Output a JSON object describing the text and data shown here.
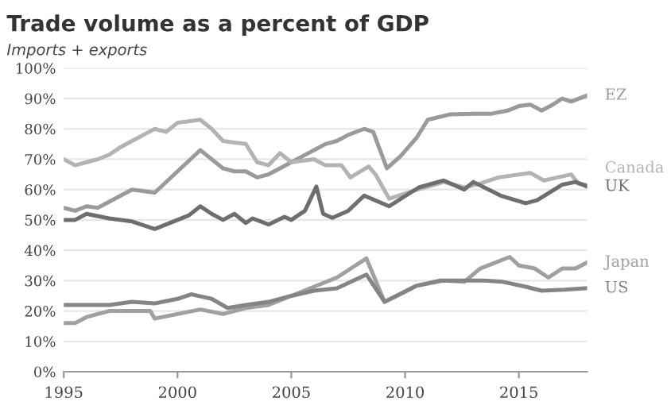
{
  "chart_data": {
    "type": "line",
    "title": "Trade volume as a percent of GDP",
    "subtitle": "Imports + exports",
    "xlim": [
      1995,
      2018
    ],
    "xticks": [
      1995,
      2000,
      2005,
      2010,
      2015
    ],
    "ylim": [
      0,
      100
    ],
    "yticks": [
      {
        "value": 0,
        "label": "0%"
      },
      {
        "value": 10,
        "label": "10%"
      },
      {
        "value": 20,
        "label": "20%"
      },
      {
        "value": 30,
        "label": "30%"
      },
      {
        "value": 40,
        "label": "40%"
      },
      {
        "value": 50,
        "label": "50%"
      },
      {
        "value": 60,
        "label": "60%"
      },
      {
        "value": 70,
        "label": "70%"
      },
      {
        "value": 80,
        "label": "80%"
      },
      {
        "value": 90,
        "label": "90%"
      },
      {
        "value": 100,
        "label": "100%"
      }
    ],
    "grid": "y",
    "legend": false,
    "marker": "none",
    "line_style": "solid",
    "series": [
      {
        "name": "EZ",
        "color": "#9a9a9a",
        "x": [
          1995,
          1995.5,
          1996,
          1996.5,
          1997,
          1998,
          1999,
          2000,
          2001,
          2002,
          2002.5,
          2003,
          2003.5,
          2004,
          2004.5,
          2005,
          2005.5,
          2006,
          2006.5,
          2007,
          2007.5,
          2008.2,
          2008.6,
          2009.2,
          2009.8,
          2010.5,
          2011,
          2012,
          2013,
          2013.8,
          2014.5,
          2015,
          2015.5,
          2016,
          2016.5,
          2016.9,
          2017.3,
          2018
        ],
        "values": [
          54,
          53,
          54.5,
          54,
          56,
          60,
          59,
          66,
          73,
          67,
          66,
          66,
          64,
          65,
          67,
          69,
          71,
          73,
          75,
          76,
          78,
          80,
          79,
          67,
          71,
          77,
          83,
          84.8,
          85,
          85,
          86,
          87.5,
          88,
          86,
          88,
          90,
          89,
          91
        ]
      },
      {
        "name": "Canada",
        "color": "#b3b3b3",
        "x": [
          1995,
          1995.5,
          1996,
          1996.5,
          1997,
          1997.5,
          1998,
          1998.5,
          1999,
          1999.5,
          2000,
          2000.5,
          2001,
          2001.5,
          2002,
          2002.5,
          2003,
          2003.5,
          2004,
          2004.5,
          2005,
          2006,
          2006.5,
          2007.2,
          2007.6,
          2008.4,
          2008.7,
          2009.3,
          2010.5,
          2011.7,
          2012.6,
          2013.3,
          2014.1,
          2015.5,
          2016.1,
          2016.7,
          2017.3,
          2017.6,
          2018
        ],
        "values": [
          70,
          68,
          69,
          70,
          71.5,
          74,
          76,
          78,
          80,
          79,
          82,
          82.5,
          83,
          80,
          76,
          75.5,
          75,
          69,
          68,
          72,
          69,
          70,
          68,
          68,
          64,
          67.6,
          65,
          57,
          59.9,
          62.5,
          60.7,
          62,
          64,
          65.5,
          63,
          64,
          65,
          62,
          61.5
        ]
      },
      {
        "name": "UK",
        "color": "#6e6e6e",
        "x": [
          1995,
          1995.5,
          1996,
          1997,
          1998,
          1999,
          2000,
          2000.5,
          2001,
          2001.5,
          2002,
          2002.5,
          2003,
          2003.3,
          2004,
          2004.7,
          2005,
          2005.6,
          2006.1,
          2006.4,
          2006.8,
          2007.5,
          2008.2,
          2009.3,
          2010.6,
          2011.7,
          2012.6,
          2013,
          2014.2,
          2015.3,
          2015.8,
          2016.9,
          2017.5,
          2018
        ],
        "values": [
          50,
          50,
          52,
          50.5,
          49.5,
          47,
          50,
          51.5,
          54.5,
          52,
          50,
          52,
          49,
          50.5,
          48.5,
          51,
          50,
          53,
          61,
          52,
          50.7,
          53,
          58,
          54.5,
          60.7,
          63,
          60,
          62.5,
          58,
          55.5,
          56.5,
          61.6,
          62.5,
          61
        ]
      },
      {
        "name": "Japan",
        "color": "#a0a0a0",
        "x": [
          1995,
          1995.5,
          1996,
          1997,
          1998,
          1998.8,
          1999,
          2000,
          2001,
          2002,
          2003,
          2004,
          2005,
          2006,
          2007,
          2008.3,
          2009.1,
          2010.5,
          2011.7,
          2012.6,
          2013.3,
          2014.6,
          2015,
          2015.7,
          2016.3,
          2016.9,
          2017.5,
          2018
        ],
        "values": [
          16,
          16,
          18,
          20,
          20,
          20,
          17.5,
          19,
          20.5,
          19,
          21,
          22,
          25,
          28,
          31,
          37.3,
          23,
          28.3,
          30,
          29.6,
          34,
          37.8,
          35,
          34,
          31,
          34,
          34,
          36
        ]
      },
      {
        "name": "US",
        "color": "#858585",
        "x": [
          1995,
          1996,
          1997,
          1998,
          1999,
          2000,
          2000.6,
          2001.5,
          2002.2,
          2003,
          2004,
          2005,
          2006,
          2007,
          2008.3,
          2009.1,
          2010.5,
          2011.5,
          2012.5,
          2013.5,
          2014.3,
          2015.3,
          2016,
          2017,
          2018
        ],
        "values": [
          22,
          22,
          22,
          23,
          22.5,
          24,
          25.5,
          24,
          21,
          22,
          23,
          25,
          26.7,
          27.5,
          32,
          23,
          28.3,
          30,
          30,
          30,
          29.6,
          28,
          26.7,
          27,
          27.5
        ]
      }
    ]
  }
}
